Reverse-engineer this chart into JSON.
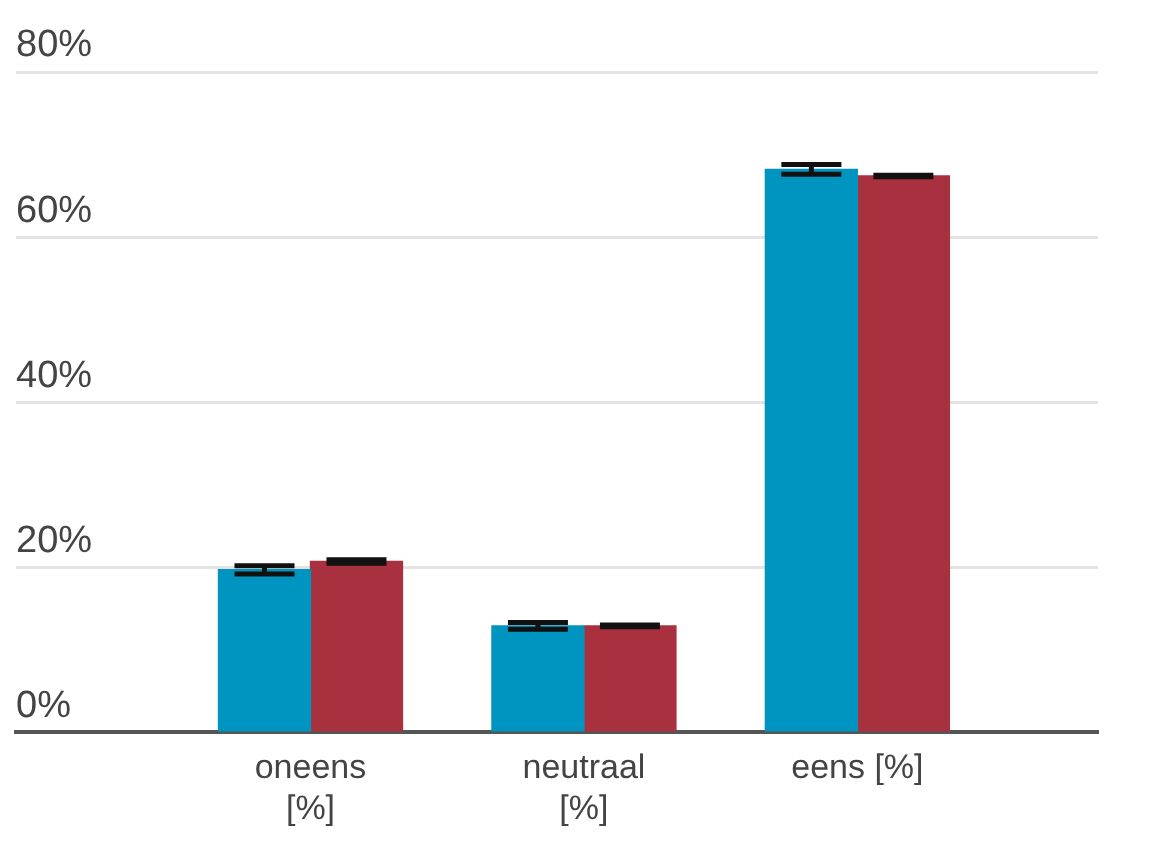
{
  "chart_data": {
    "type": "bar",
    "categories": [
      "oneens [%]",
      "neutraal [%]",
      "eens [%]"
    ],
    "series": [
      {
        "color": "#0095c0",
        "values": [
          19.7,
          12.9,
          68.2
        ],
        "errors": [
          0.5,
          0.4,
          0.6
        ]
      },
      {
        "color": "#a8303f",
        "values": [
          20.7,
          12.9,
          67.4
        ],
        "errors": [
          0.2,
          0.1,
          0.1
        ]
      }
    ],
    "ylim": [
      0,
      80
    ],
    "yticks": [
      {
        "value": 0,
        "label": "0%"
      },
      {
        "value": 20,
        "label": "20%"
      },
      {
        "value": 40,
        "label": "40%"
      },
      {
        "value": 60,
        "label": "60%"
      },
      {
        "value": 80,
        "label": "80%"
      }
    ],
    "grid": "y",
    "legend": false
  }
}
